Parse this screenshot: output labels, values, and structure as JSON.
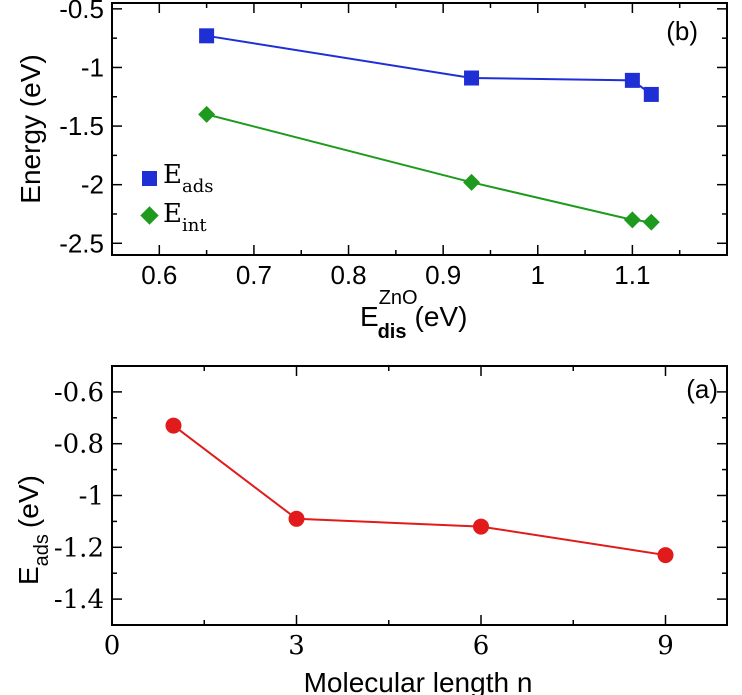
{
  "chart_data": [
    {
      "id": "b",
      "type": "line",
      "panel_label": "(b)",
      "ylabel": "Energy (eV)",
      "xlabel": {
        "base": "E",
        "sup": "ZnO",
        "sub": "dis",
        "unit": "(eV)"
      },
      "xlim": [
        0.55,
        1.2
      ],
      "ylim": [
        -2.6,
        -0.45
      ],
      "xticks": [
        0.6,
        0.7,
        0.8,
        0.9,
        1.0,
        1.1
      ],
      "xtick_labels": [
        "0.6",
        "0.7",
        "0.8",
        "0.9",
        "1",
        "1.1"
      ],
      "yticks": [
        -0.5,
        -1.0,
        -1.5,
        -2.0,
        -2.5
      ],
      "ytick_labels": [
        "-0.5",
        "-1",
        "-1.5",
        "-2",
        "-2.5"
      ],
      "legend_position": "left",
      "series": [
        {
          "name": "E_ads",
          "legend_base": "E",
          "legend_sub": "ads",
          "color": "#1f2fd6",
          "marker": "square",
          "x": [
            0.65,
            0.93,
            1.1,
            1.12
          ],
          "y": [
            -0.73,
            -1.09,
            -1.11,
            -1.23
          ]
        },
        {
          "name": "E_int",
          "legend_base": "E",
          "legend_sub": "int",
          "color": "#1e9b1e",
          "marker": "diamond",
          "x": [
            0.65,
            0.93,
            1.1,
            1.12
          ],
          "y": [
            -1.4,
            -1.98,
            -2.3,
            -2.32
          ]
        }
      ]
    },
    {
      "id": "a",
      "type": "line",
      "panel_label": "(a)",
      "ylabel": {
        "base": "E",
        "sub": "ads",
        "unit": "(eV)"
      },
      "xlabel": "Molecular length n",
      "xlim": [
        0,
        10
      ],
      "ylim": [
        -1.5,
        -0.5
      ],
      "xticks": [
        0,
        3,
        6,
        9
      ],
      "xtick_labels": [
        "0",
        "3",
        "6",
        "9"
      ],
      "yticks": [
        -0.6,
        -0.8,
        -1.0,
        -1.2,
        -1.4
      ],
      "ytick_labels": [
        "-0.6",
        "-0.8",
        "-1",
        "-1.2",
        "-1.4"
      ],
      "series": [
        {
          "name": "E_ads",
          "color": "#e11b1b",
          "marker": "circle",
          "x": [
            1,
            3,
            6,
            9
          ],
          "y": [
            -0.73,
            -1.09,
            -1.12,
            -1.23
          ]
        }
      ]
    }
  ]
}
